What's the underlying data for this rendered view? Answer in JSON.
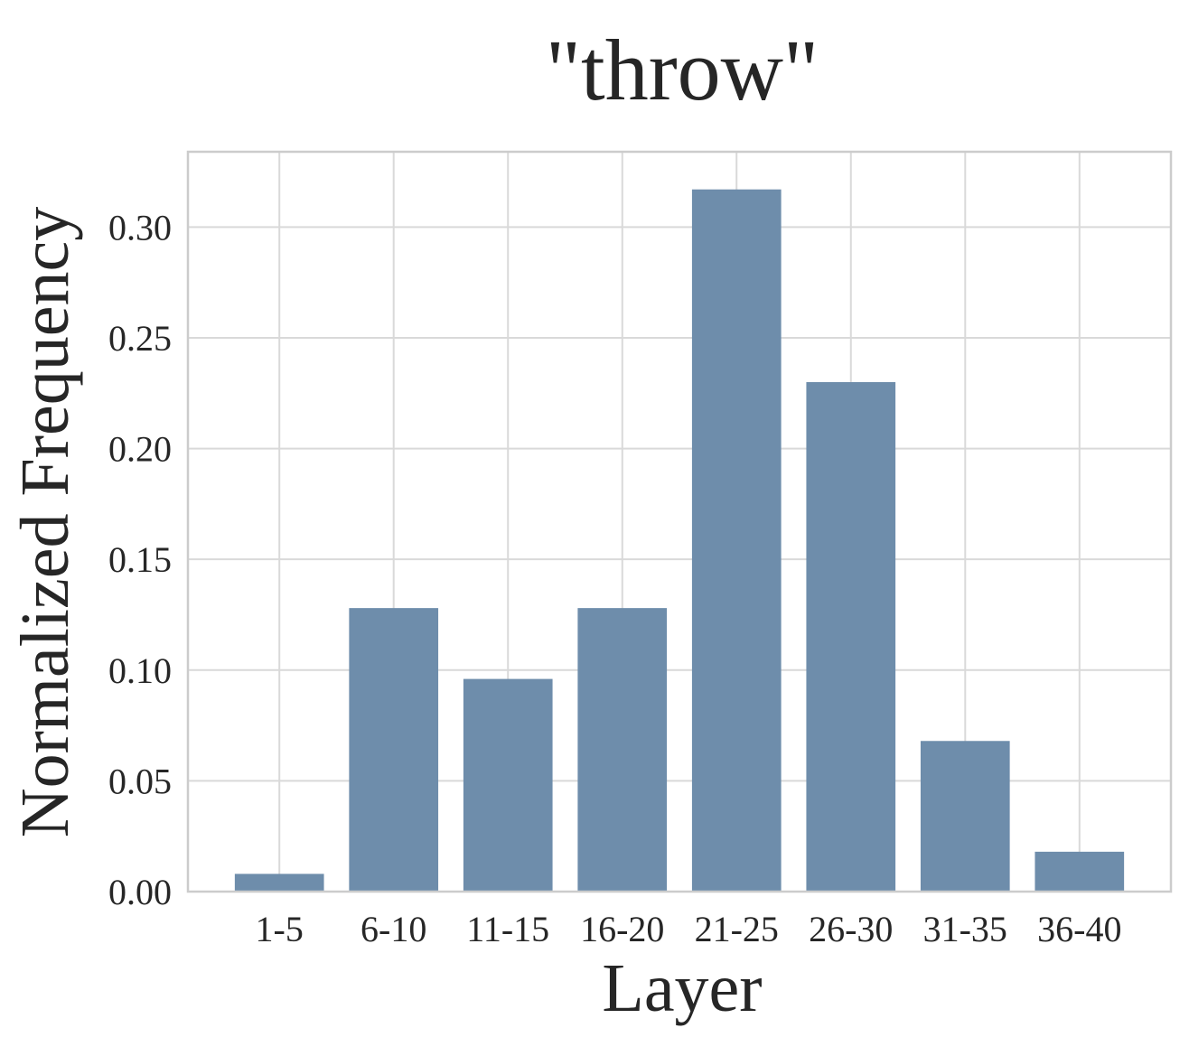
{
  "chart_data": {
    "type": "bar",
    "title": "\"throw\"",
    "xlabel": "Layer",
    "ylabel": "Normalized Frequency",
    "categories": [
      "1-5",
      "6-10",
      "11-15",
      "16-20",
      "21-25",
      "26-30",
      "31-35",
      "36-40"
    ],
    "values": [
      0.008,
      0.128,
      0.096,
      0.128,
      0.317,
      0.23,
      0.068,
      0.018
    ],
    "ylim": [
      0,
      0.334
    ],
    "yticks": [
      0.0,
      0.05,
      0.1,
      0.15,
      0.2,
      0.25,
      0.3
    ],
    "ytick_labels": [
      "0.00",
      "0.05",
      "0.10",
      "0.15",
      "0.20",
      "0.25",
      "0.30"
    ],
    "grid": true,
    "legend": "none",
    "colors": {
      "bar": "#6e8dab",
      "grid": "#d9d9d9",
      "frame": "#cccccc",
      "text": "#262626"
    }
  }
}
